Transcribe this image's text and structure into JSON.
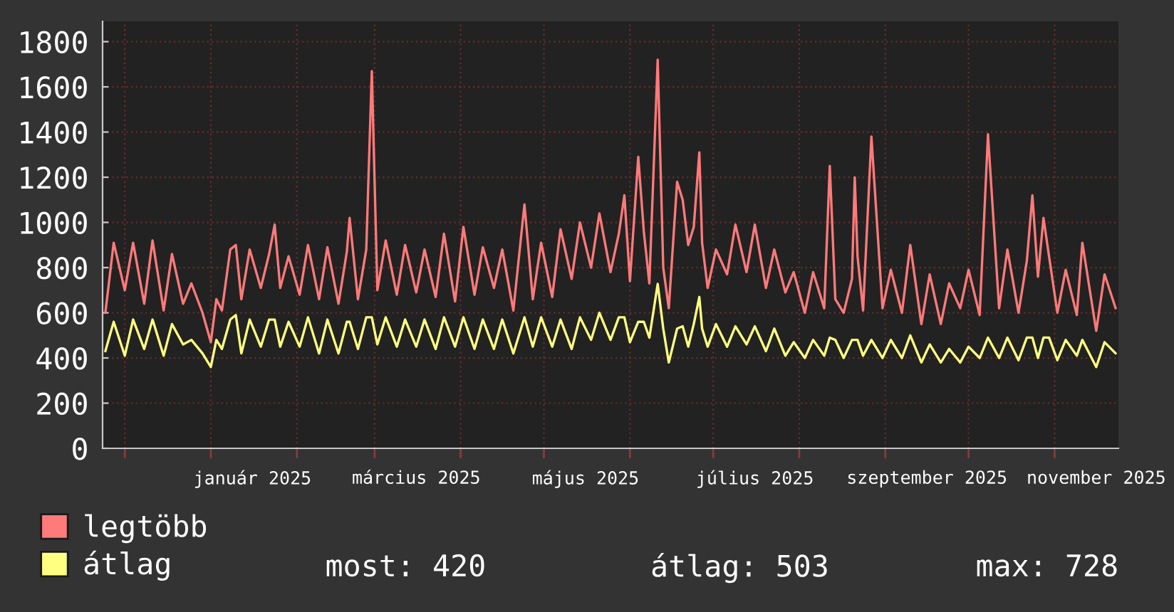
{
  "chart_data": {
    "type": "line",
    "x": [
      "2024-11-24",
      "2024-11-27",
      "2024-12-01",
      "2024-12-04",
      "2024-12-08",
      "2024-12-11",
      "2024-12-15",
      "2024-12-18",
      "2024-12-22",
      "2024-12-25",
      "2024-12-29",
      "2025-01-01",
      "2025-01-03",
      "2025-01-05",
      "2025-01-08",
      "2025-01-10",
      "2025-01-12",
      "2025-01-15",
      "2025-01-19",
      "2025-01-22",
      "2025-01-24",
      "2025-01-26",
      "2025-01-29",
      "2025-02-02",
      "2025-02-05",
      "2025-02-09",
      "2025-02-12",
      "2025-02-16",
      "2025-02-19",
      "2025-02-20",
      "2025-02-23",
      "2025-02-26",
      "2025-02-28",
      "2025-03-02",
      "2025-03-05",
      "2025-03-09",
      "2025-03-12",
      "2025-03-16",
      "2025-03-19",
      "2025-03-23",
      "2025-03-26",
      "2025-03-30",
      "2025-04-02",
      "2025-04-06",
      "2025-04-09",
      "2025-04-13",
      "2025-04-16",
      "2025-04-20",
      "2025-04-24",
      "2025-04-27",
      "2025-04-30",
      "2025-05-04",
      "2025-05-07",
      "2025-05-11",
      "2025-05-14",
      "2025-05-18",
      "2025-05-21",
      "2025-05-25",
      "2025-05-28",
      "2025-05-30",
      "2025-06-01",
      "2025-06-04",
      "2025-06-06",
      "2025-06-08",
      "2025-06-11",
      "2025-06-13",
      "2025-06-15",
      "2025-06-18",
      "2025-06-20",
      "2025-06-22",
      "2025-06-24",
      "2025-06-26",
      "2025-06-27",
      "2025-06-29",
      "2025-07-02",
      "2025-07-06",
      "2025-07-09",
      "2025-07-13",
      "2025-07-16",
      "2025-07-20",
      "2025-07-23",
      "2025-07-27",
      "2025-07-30",
      "2025-08-03",
      "2025-08-06",
      "2025-08-10",
      "2025-08-12",
      "2025-08-14",
      "2025-08-17",
      "2025-08-20",
      "2025-08-21",
      "2025-08-22",
      "2025-08-24",
      "2025-08-27",
      "2025-08-31",
      "2025-09-03",
      "2025-09-07",
      "2025-09-10",
      "2025-09-14",
      "2025-09-17",
      "2025-09-21",
      "2025-09-24",
      "2025-09-28",
      "2025-10-01",
      "2025-10-05",
      "2025-10-08",
      "2025-10-12",
      "2025-10-15",
      "2025-10-19",
      "2025-10-22",
      "2025-10-24",
      "2025-10-26",
      "2025-10-28",
      "2025-10-30",
      "2025-11-02",
      "2025-11-05",
      "2025-11-09",
      "2025-11-11",
      "2025-11-16",
      "2025-11-19",
      "2025-11-23"
    ],
    "series": [
      {
        "name": "legtöbb",
        "color": "#ff7a7a",
        "values": [
          600,
          910,
          700,
          910,
          640,
          920,
          610,
          860,
          640,
          730,
          600,
          470,
          660,
          610,
          880,
          900,
          660,
          880,
          710,
          860,
          990,
          710,
          850,
          680,
          900,
          660,
          890,
          640,
          870,
          1020,
          660,
          880,
          1670,
          700,
          920,
          680,
          900,
          690,
          880,
          670,
          950,
          650,
          980,
          680,
          890,
          710,
          880,
          610,
          1080,
          660,
          910,
          670,
          970,
          750,
          1000,
          800,
          1040,
          780,
          950,
          1120,
          740,
          1290,
          960,
          730,
          1720,
          800,
          620,
          1180,
          1100,
          900,
          980,
          1310,
          910,
          710,
          880,
          770,
          990,
          780,
          990,
          710,
          880,
          690,
          780,
          600,
          780,
          620,
          1250,
          660,
          600,
          750,
          1200,
          850,
          610,
          1380,
          620,
          790,
          600,
          900,
          550,
          770,
          550,
          730,
          620,
          790,
          590,
          1390,
          620,
          880,
          600,
          830,
          1120,
          760,
          1020,
          850,
          600,
          790,
          590,
          910,
          520,
          770,
          620
        ]
      },
      {
        "name": "átlag",
        "color": "#ffff80",
        "values": [
          430,
          560,
          410,
          570,
          440,
          570,
          410,
          550,
          460,
          480,
          420,
          360,
          480,
          440,
          570,
          590,
          420,
          570,
          450,
          570,
          570,
          450,
          560,
          450,
          580,
          420,
          570,
          420,
          560,
          560,
          440,
          580,
          580,
          460,
          580,
          450,
          570,
          450,
          570,
          440,
          580,
          450,
          580,
          440,
          570,
          440,
          570,
          420,
          580,
          450,
          580,
          450,
          570,
          440,
          580,
          480,
          600,
          480,
          580,
          580,
          470,
          560,
          560,
          490,
          728,
          530,
          380,
          530,
          540,
          450,
          550,
          670,
          530,
          450,
          550,
          450,
          540,
          460,
          540,
          430,
          530,
          410,
          470,
          400,
          480,
          410,
          490,
          480,
          400,
          480,
          480,
          480,
          410,
          480,
          400,
          480,
          400,
          500,
          380,
          460,
          380,
          440,
          380,
          450,
          400,
          490,
          400,
          490,
          390,
          490,
          490,
          400,
          490,
          490,
          390,
          480,
          410,
          480,
          360,
          470,
          420
        ]
      }
    ],
    "xlim": [
      "2024-11-23",
      "2025-11-24"
    ],
    "xticks": [
      {
        "value": "2024-12-01",
        "label": null
      },
      {
        "value": "2025-01-01",
        "label": null
      },
      {
        "value": "2025-01-16",
        "label": "január 2025"
      },
      {
        "value": "2025-02-01",
        "label": null
      },
      {
        "value": "2025-03-01",
        "label": null
      },
      {
        "value": "2025-03-16",
        "label": "március 2025"
      },
      {
        "value": "2025-04-01",
        "label": null
      },
      {
        "value": "2025-05-01",
        "label": null
      },
      {
        "value": "2025-05-16",
        "label": "május 2025"
      },
      {
        "value": "2025-06-01",
        "label": null
      },
      {
        "value": "2025-07-01",
        "label": null
      },
      {
        "value": "2025-07-16",
        "label": "július 2025"
      },
      {
        "value": "2025-08-01",
        "label": null
      },
      {
        "value": "2025-09-01",
        "label": null
      },
      {
        "value": "2025-09-16",
        "label": "szeptember 2025"
      },
      {
        "value": "2025-10-01",
        "label": null
      },
      {
        "value": "2025-11-01",
        "label": null
      },
      {
        "value": "2025-11-16",
        "label": "november 2025"
      }
    ],
    "ylim": [
      0,
      1890
    ],
    "yticks": [
      0,
      200,
      400,
      600,
      800,
      1000,
      1200,
      1400,
      1600,
      1800
    ],
    "grid": true,
    "legend": "bottom left",
    "annotations": [
      "most: 420",
      "átlag: 503",
      "max: 728"
    ]
  }
}
